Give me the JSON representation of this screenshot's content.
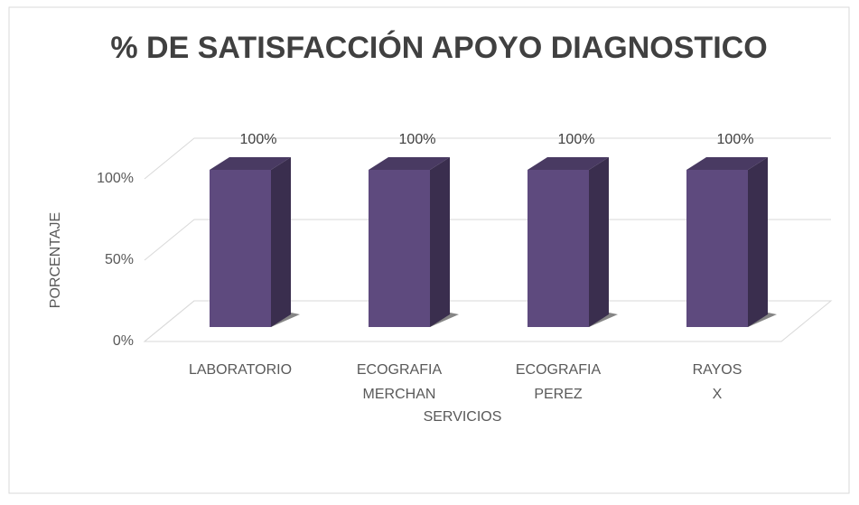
{
  "chart_data": {
    "type": "bar3d",
    "title": "% DE SATISFACCIÓN APOYO DIAGNOSTICO",
    "x_label": "SERVICIOS",
    "y_label": "PORCENTAJE",
    "categories": [
      "LABORATORIO",
      "ECOGRAFIA MERCHAN",
      "ECOGRAFIA PEREZ",
      "RAYOS X"
    ],
    "values": [
      100,
      100,
      100,
      100
    ],
    "value_labels": [
      "100%",
      "100%",
      "100%",
      "100%"
    ],
    "color": "#5e4a7e",
    "ylim": [
      0,
      100
    ],
    "yticks": [
      {
        "value": 0,
        "label": "0%"
      },
      {
        "value": 50,
        "label": "50%"
      },
      {
        "value": 100,
        "label": "100%"
      }
    ],
    "grid": true
  }
}
